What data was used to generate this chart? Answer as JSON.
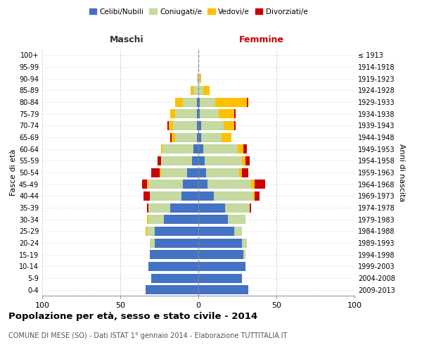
{
  "age_groups": [
    "0-4",
    "5-9",
    "10-14",
    "15-19",
    "20-24",
    "25-29",
    "30-34",
    "35-39",
    "40-44",
    "45-49",
    "50-54",
    "55-59",
    "60-64",
    "65-69",
    "70-74",
    "75-79",
    "80-84",
    "85-89",
    "90-94",
    "95-99",
    "100+"
  ],
  "birth_years": [
    "2009-2013",
    "2004-2008",
    "1999-2003",
    "1994-1998",
    "1989-1993",
    "1984-1988",
    "1979-1983",
    "1974-1978",
    "1969-1973",
    "1964-1968",
    "1959-1963",
    "1954-1958",
    "1949-1953",
    "1944-1948",
    "1939-1943",
    "1934-1938",
    "1929-1933",
    "1924-1928",
    "1919-1923",
    "1914-1918",
    "≤ 1913"
  ],
  "maschi": {
    "celibi": [
      34,
      30,
      32,
      31,
      28,
      28,
      22,
      18,
      11,
      10,
      7,
      4,
      3,
      1,
      1,
      1,
      1,
      0,
      0,
      0,
      0
    ],
    "coniugati": [
      0,
      0,
      0,
      0,
      3,
      5,
      10,
      14,
      20,
      22,
      17,
      20,
      20,
      14,
      15,
      14,
      9,
      3,
      1,
      0,
      0
    ],
    "vedovi": [
      0,
      0,
      0,
      0,
      0,
      1,
      1,
      0,
      0,
      1,
      1,
      0,
      1,
      2,
      3,
      3,
      5,
      2,
      0,
      0,
      0
    ],
    "divorziati": [
      0,
      0,
      0,
      0,
      0,
      0,
      0,
      1,
      4,
      3,
      5,
      2,
      0,
      1,
      1,
      0,
      0,
      0,
      0,
      0,
      0
    ]
  },
  "femmine": {
    "nubili": [
      32,
      28,
      30,
      29,
      28,
      23,
      19,
      17,
      10,
      6,
      5,
      4,
      3,
      2,
      2,
      1,
      1,
      0,
      0,
      0,
      0
    ],
    "coniugate": [
      0,
      0,
      0,
      1,
      3,
      5,
      11,
      16,
      25,
      28,
      21,
      24,
      22,
      13,
      14,
      12,
      10,
      3,
      1,
      0,
      0
    ],
    "vedove": [
      0,
      0,
      0,
      0,
      0,
      0,
      0,
      0,
      1,
      2,
      2,
      2,
      4,
      6,
      7,
      10,
      20,
      4,
      1,
      0,
      0
    ],
    "divorziate": [
      0,
      0,
      0,
      0,
      0,
      0,
      0,
      1,
      3,
      7,
      4,
      3,
      2,
      0,
      1,
      1,
      1,
      0,
      0,
      0,
      0
    ]
  },
  "colors": {
    "celibi": "#4472c4",
    "coniugati": "#c5d9a0",
    "vedovi": "#ffc000",
    "divorziati": "#cc0000"
  },
  "xlim": 100,
  "title": "Popolazione per età, sesso e stato civile - 2014",
  "subtitle": "COMUNE DI MESE (SO) - Dati ISTAT 1° gennaio 2014 - Elaborazione TUTTITALIA.IT",
  "ylabel_left": "Fasce di età",
  "ylabel_right": "Anni di nascita",
  "legend_labels": [
    "Celibi/Nubili",
    "Coniugati/e",
    "Vedovi/e",
    "Divorziati/e"
  ],
  "maschi_label": "Maschi",
  "femmine_label": "Femmine"
}
